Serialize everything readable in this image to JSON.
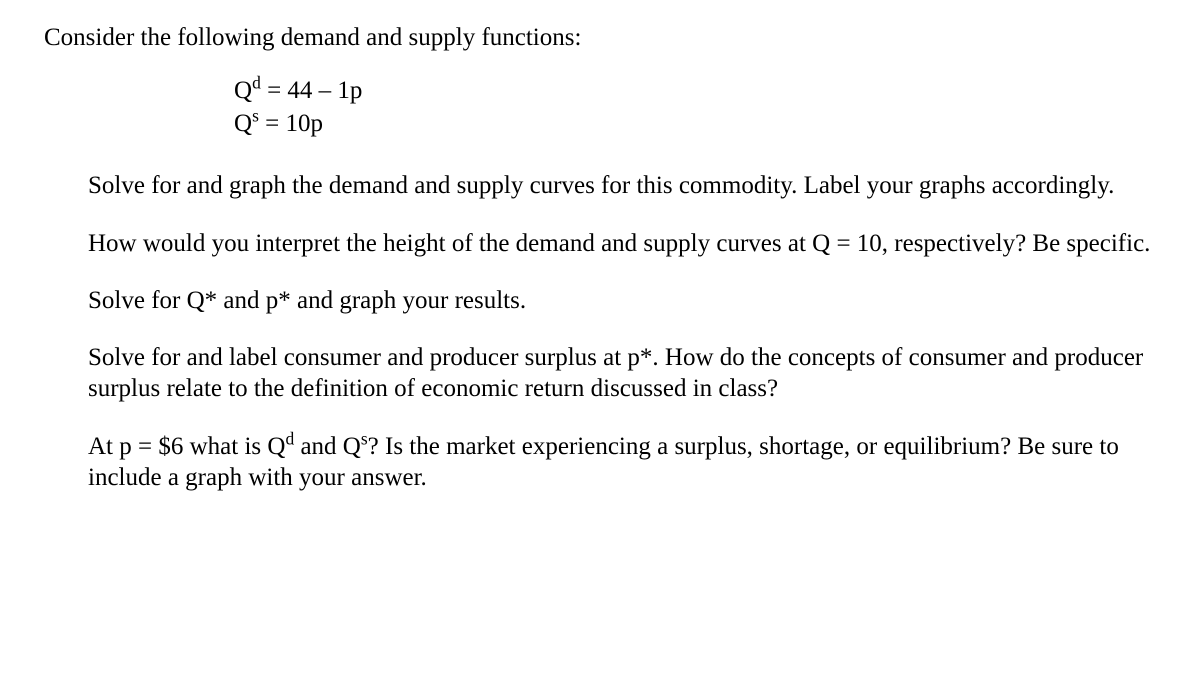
{
  "intro": "Consider the following demand and supply functions:",
  "eq": {
    "demand_lhs_base": "Q",
    "demand_lhs_sup": "d",
    "demand_rhs": " = 44 – 1p",
    "supply_lhs_base": "Q",
    "supply_lhs_sup": "s",
    "supply_rhs": " = 10p"
  },
  "p1": "Solve for and graph the demand and supply curves for this commodity.  Label your graphs accordingly.",
  "p2": "How would you interpret the height of the demand and supply curves at Q = 10, respectively?  Be specific.",
  "p3": "Solve for Q* and p* and graph your results.",
  "p4": "Solve for and label consumer and producer surplus at p*.  How do the concepts of consumer and producer surplus relate to the definition of economic return discussed in class?",
  "p5": {
    "a": "At p = $6 what is Q",
    "sup1": "d",
    "b": " and Q",
    "sup2": "s",
    "c": "?  Is the market experiencing a surplus, shortage, or equilibrium?  Be sure to include a graph with your answer."
  }
}
